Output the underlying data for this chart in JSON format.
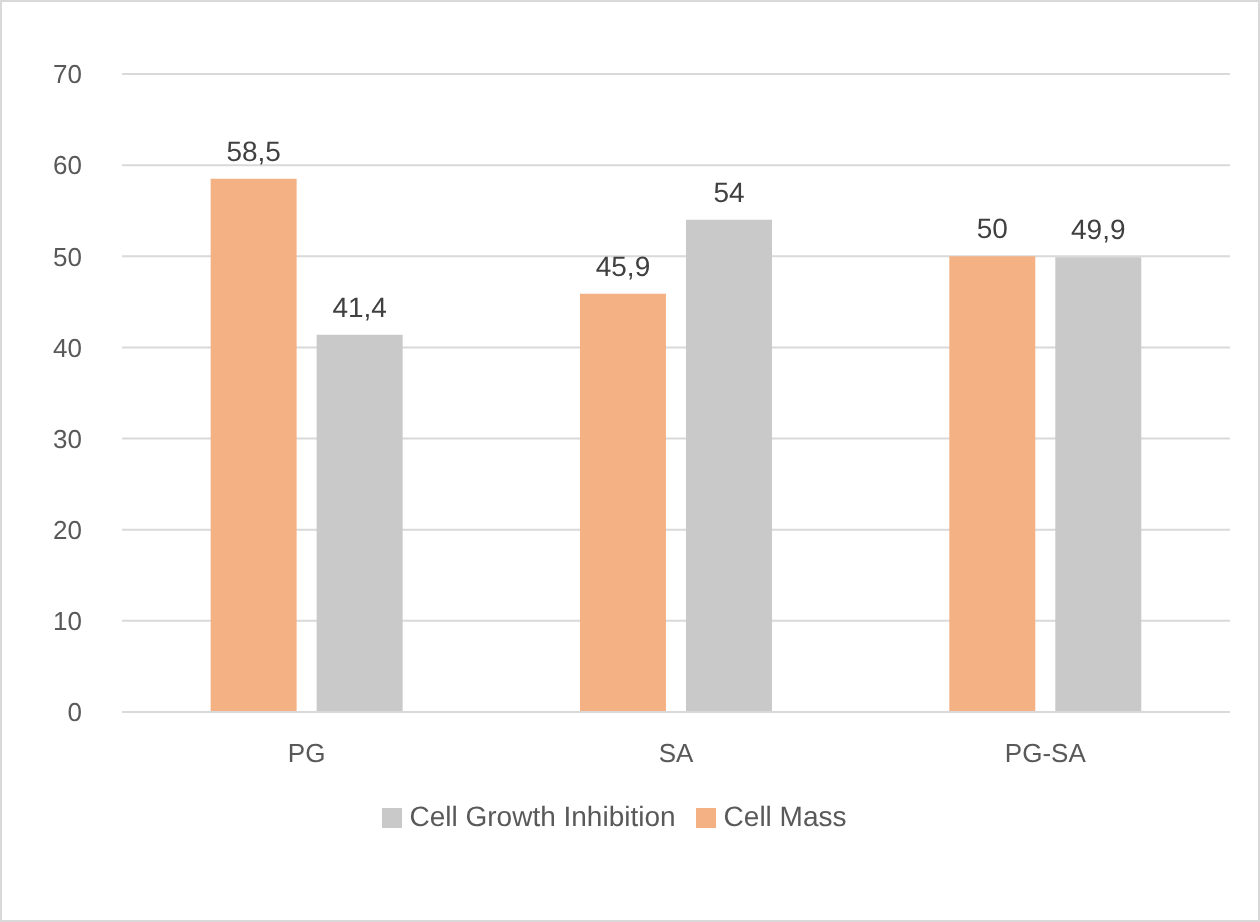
{
  "chart_data": {
    "type": "bar",
    "categories": [
      "PG",
      "SA",
      "PG-SA"
    ],
    "series": [
      {
        "name": "Cell Mass",
        "color": "#f4b183",
        "values": [
          58.5,
          45.9,
          50
        ],
        "value_labels": [
          "58,5",
          "45,9",
          "50"
        ]
      },
      {
        "name": "Cell Growth Inhibition",
        "color": "#c9c9c9",
        "values": [
          41.4,
          54,
          49.9
        ],
        "value_labels": [
          "41,4",
          "54",
          "49,9"
        ]
      }
    ],
    "ylim": [
      0,
      70
    ],
    "yticks": [
      0,
      10,
      20,
      30,
      40,
      50,
      60,
      70
    ],
    "grid": "y",
    "legend": "bottom"
  }
}
